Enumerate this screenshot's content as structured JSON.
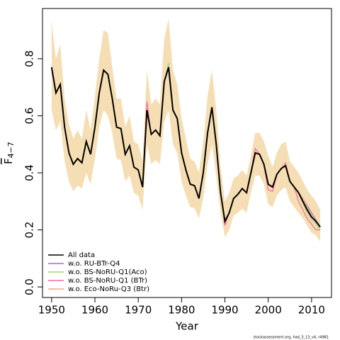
{
  "chart_data": {
    "type": "line",
    "x_label": "Year",
    "y_label": "F",
    "y_label_subscript": "4−7",
    "footnote": "stockassessment.org, had_3_13_v4, r4981",
    "x": [
      1950,
      1951,
      1952,
      1953,
      1954,
      1955,
      1956,
      1957,
      1958,
      1959,
      1960,
      1961,
      1962,
      1963,
      1964,
      1965,
      1966,
      1967,
      1968,
      1969,
      1970,
      1971,
      1972,
      1973,
      1974,
      1975,
      1976,
      1977,
      1978,
      1979,
      1980,
      1981,
      1982,
      1983,
      1984,
      1985,
      1986,
      1987,
      1988,
      1989,
      1990,
      1991,
      1992,
      1993,
      1994,
      1995,
      1996,
      1997,
      1998,
      1999,
      2000,
      2001,
      2002,
      2003,
      2004,
      2005,
      2006,
      2007,
      2008,
      2009,
      2010,
      2011,
      2012
    ],
    "xlim": [
      1947.9,
      2014.6
    ],
    "xticks": [
      1950,
      1960,
      1970,
      1980,
      1990,
      2000,
      2010
    ],
    "ylim": [
      -0.037,
      0.976
    ],
    "yticks": [
      {
        "value": 0,
        "label": "0.0"
      },
      0.2,
      0.4,
      0.6,
      0.8
    ],
    "band": {
      "color": "#f5deb3",
      "upper": [
        0.93,
        0.8,
        0.85,
        0.66,
        0.57,
        0.52,
        0.55,
        0.52,
        0.62,
        0.55,
        0.67,
        0.8,
        0.9,
        0.89,
        0.77,
        0.66,
        0.66,
        0.56,
        0.6,
        0.51,
        0.5,
        0.44,
        0.76,
        0.64,
        0.66,
        0.64,
        0.87,
        0.94,
        0.76,
        0.71,
        0.59,
        0.52,
        0.45,
        0.44,
        0.4,
        0.51,
        0.67,
        0.76,
        0.62,
        0.42,
        0.3,
        0.33,
        0.38,
        0.39,
        0.41,
        0.39,
        0.46,
        0.54,
        0.54,
        0.51,
        0.46,
        0.42,
        0.47,
        0.5,
        0.51,
        0.44,
        0.42,
        0.4,
        0.37,
        0.34,
        0.32,
        0.3,
        0.27
      ],
      "lower": [
        0.62,
        0.55,
        0.58,
        0.44,
        0.37,
        0.335,
        0.355,
        0.345,
        0.4,
        0.36,
        0.45,
        0.56,
        0.62,
        0.6,
        0.54,
        0.45,
        0.445,
        0.37,
        0.39,
        0.33,
        0.32,
        0.27,
        0.5,
        0.43,
        0.445,
        0.43,
        0.58,
        0.62,
        0.5,
        0.47,
        0.37,
        0.32,
        0.28,
        0.275,
        0.24,
        0.31,
        0.43,
        0.5,
        0.39,
        0.26,
        0.175,
        0.2,
        0.25,
        0.26,
        0.275,
        0.26,
        0.33,
        0.39,
        0.39,
        0.36,
        0.29,
        0.28,
        0.32,
        0.34,
        0.35,
        0.3,
        0.28,
        0.26,
        0.24,
        0.215,
        0.19,
        0.18,
        0.16
      ]
    },
    "series": [
      {
        "name": "w.o. RU-BTr-Q4",
        "color": "#9b72cf",
        "values": [
          0.77,
          0.68,
          0.71,
          0.56,
          0.47,
          0.43,
          0.45,
          0.435,
          0.51,
          0.465,
          0.56,
          0.68,
          0.76,
          0.745,
          0.66,
          0.56,
          0.555,
          0.465,
          0.495,
          0.42,
          0.41,
          0.35,
          0.62,
          0.535,
          0.55,
          0.53,
          0.72,
          0.77,
          0.62,
          0.59,
          0.47,
          0.41,
          0.36,
          0.355,
          0.31,
          0.4,
          0.54,
          0.63,
          0.5,
          0.33,
          0.23,
          0.26,
          0.31,
          0.325,
          0.345,
          0.33,
          0.4,
          0.47,
          0.465,
          0.43,
          0.36,
          0.35,
          0.395,
          0.415,
          0.425,
          0.37,
          0.35,
          0.33,
          0.31,
          0.285,
          0.26,
          0.235,
          0.21
        ]
      },
      {
        "name": "w.o. BS-NoRU-Q1(Aco)",
        "color": "#a6d96a",
        "values": [
          0.77,
          0.68,
          0.71,
          0.56,
          0.47,
          0.43,
          0.45,
          0.435,
          0.51,
          0.465,
          0.56,
          0.68,
          0.76,
          0.745,
          0.66,
          0.56,
          0.555,
          0.465,
          0.495,
          0.42,
          0.41,
          0.35,
          0.62,
          0.535,
          0.55,
          0.53,
          0.72,
          0.785,
          0.62,
          0.59,
          0.47,
          0.41,
          0.36,
          0.355,
          0.31,
          0.4,
          0.54,
          0.63,
          0.5,
          0.33,
          0.23,
          0.26,
          0.31,
          0.325,
          0.345,
          0.33,
          0.4,
          0.47,
          0.465,
          0.43,
          0.36,
          0.35,
          0.395,
          0.415,
          0.425,
          0.37,
          0.35,
          0.33,
          0.29,
          0.26,
          0.235,
          0.22,
          0.2
        ]
      },
      {
        "name": "w.o. BS-NoRU-Q1 (BTr)",
        "color": "#f768a1",
        "values": [
          0.77,
          0.68,
          0.71,
          0.56,
          0.47,
          0.43,
          0.45,
          0.435,
          0.51,
          0.465,
          0.56,
          0.68,
          0.76,
          0.745,
          0.66,
          0.56,
          0.555,
          0.465,
          0.495,
          0.42,
          0.41,
          0.35,
          0.65,
          0.535,
          0.55,
          0.53,
          0.72,
          0.77,
          0.62,
          0.59,
          0.47,
          0.41,
          0.36,
          0.355,
          0.31,
          0.4,
          0.54,
          0.63,
          0.5,
          0.33,
          0.215,
          0.26,
          0.31,
          0.325,
          0.345,
          0.33,
          0.4,
          0.485,
          0.465,
          0.43,
          0.34,
          0.335,
          0.395,
          0.415,
          0.435,
          0.37,
          0.35,
          0.3,
          0.27,
          0.24,
          0.22,
          0.2,
          0.2
        ]
      },
      {
        "name": "w.o. Eco-NoRu-Q3 (Btr)",
        "color": "#f4a582",
        "values": [
          0.77,
          0.68,
          0.71,
          0.56,
          0.47,
          0.43,
          0.45,
          0.435,
          0.51,
          0.465,
          0.56,
          0.68,
          0.76,
          0.745,
          0.66,
          0.56,
          0.555,
          0.465,
          0.495,
          0.42,
          0.41,
          0.35,
          0.62,
          0.535,
          0.55,
          0.53,
          0.72,
          0.77,
          0.62,
          0.59,
          0.47,
          0.41,
          0.36,
          0.355,
          0.31,
          0.4,
          0.54,
          0.63,
          0.5,
          0.33,
          0.23,
          0.26,
          0.31,
          0.325,
          0.345,
          0.33,
          0.4,
          0.47,
          0.465,
          0.43,
          0.36,
          0.35,
          0.395,
          0.415,
          0.425,
          0.37,
          0.35,
          0.33,
          0.31,
          0.28,
          0.25,
          0.23,
          0.21
        ]
      },
      {
        "name": "All data",
        "color": "#000000",
        "values": [
          0.77,
          0.68,
          0.71,
          0.56,
          0.47,
          0.43,
          0.45,
          0.435,
          0.51,
          0.465,
          0.56,
          0.68,
          0.76,
          0.745,
          0.66,
          0.56,
          0.555,
          0.465,
          0.495,
          0.42,
          0.41,
          0.35,
          0.62,
          0.535,
          0.55,
          0.53,
          0.72,
          0.77,
          0.62,
          0.59,
          0.47,
          0.41,
          0.36,
          0.355,
          0.31,
          0.4,
          0.54,
          0.63,
          0.5,
          0.33,
          0.23,
          0.26,
          0.31,
          0.325,
          0.345,
          0.33,
          0.4,
          0.47,
          0.465,
          0.43,
          0.36,
          0.35,
          0.395,
          0.415,
          0.425,
          0.37,
          0.35,
          0.33,
          0.3,
          0.27,
          0.245,
          0.23,
          0.21
        ]
      }
    ],
    "legend_order": [
      4,
      0,
      1,
      2,
      3
    ],
    "legend_position": "bottom-left"
  }
}
